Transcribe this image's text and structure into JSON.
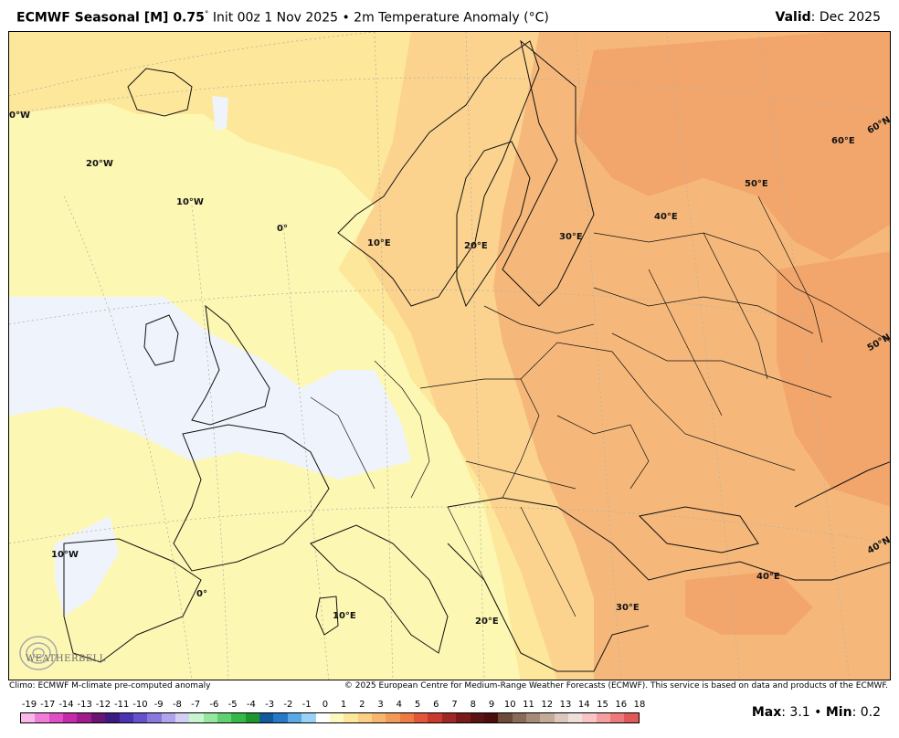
{
  "header": {
    "title": "ECMWF Seasonal [M] 0.75",
    "degree": "°",
    "subtitle": "Init 00z 1 Nov 2025 • 2m Temperature Anomaly (°C)",
    "valid_label": "Valid",
    "valid_value": ": Dec 2025"
  },
  "map": {
    "lon_labels": [
      "0°W",
      "20°W",
      "10°W",
      "0°",
      "10°E",
      "20°E",
      "30°E",
      "40°E",
      "50°E",
      "60°E",
      "10°W",
      "0°",
      "10°E",
      "20°E",
      "30°E",
      "40°E"
    ],
    "lat_labels": [
      "60°N",
      "50°N",
      "40°N"
    ],
    "colors": {
      "pale_blue": "#eff4fc",
      "light_yellow": "#fdf7b4",
      "yellow": "#fdea9e",
      "light_orange": "#fbd38f",
      "orange": "#f6b87a",
      "deep_orange": "#f3a66c"
    }
  },
  "credits": {
    "left": "Climo: ECMWF M-climate pre-computed anomaly",
    "right": "© 2025 European Centre for Medium-Range Weather Forecasts (ECMWF). This service is based on data and products of the ECMWF."
  },
  "logo": {
    "text": "WEATHERBELL"
  },
  "colorbar": {
    "ticks": [
      "-19",
      "-17",
      "-14",
      "-13",
      "-12",
      "-11",
      "-10",
      "-9",
      "-8",
      "-7",
      "-6",
      "-5",
      "-4",
      "-3",
      "-2",
      "-1",
      "0",
      "1",
      "2",
      "3",
      "4",
      "5",
      "6",
      "7",
      "8",
      "9",
      "10",
      "11",
      "12",
      "13",
      "14",
      "15",
      "16",
      "18"
    ],
    "colors": [
      "#f9b8e8",
      "#f07ed8",
      "#e04ec6",
      "#c52aa8",
      "#a01c8c",
      "#6b1470",
      "#3d1a80",
      "#4a32b0",
      "#6452cc",
      "#8a78dc",
      "#b0a4ea",
      "#d4d0f4",
      "#c8f4d0",
      "#96e6a0",
      "#60d070",
      "#36b848",
      "#1e9630",
      "#145a9a",
      "#2878c8",
      "#5aa8e6",
      "#9ad2f6",
      "#ffffff",
      "#fdf7c0",
      "#fde79a",
      "#fbcf84",
      "#f7b670",
      "#f39a5a",
      "#ee7a44",
      "#e2563a",
      "#c83a2e",
      "#a02824",
      "#7a1a1a",
      "#5a1212",
      "#4a0e0e",
      "#6e4a3a",
      "#8a6a58",
      "#a88a78",
      "#c4aa98",
      "#dcc8bc",
      "#eee0d8",
      "#f8c4c4",
      "#f4a0a0",
      "#ec7a7a",
      "#e25858"
    ]
  },
  "stats": {
    "max_label": "Max",
    "max_value": ": 3.1",
    "sep": " • ",
    "min_label": "Min",
    "min_value": ": 0.2"
  }
}
